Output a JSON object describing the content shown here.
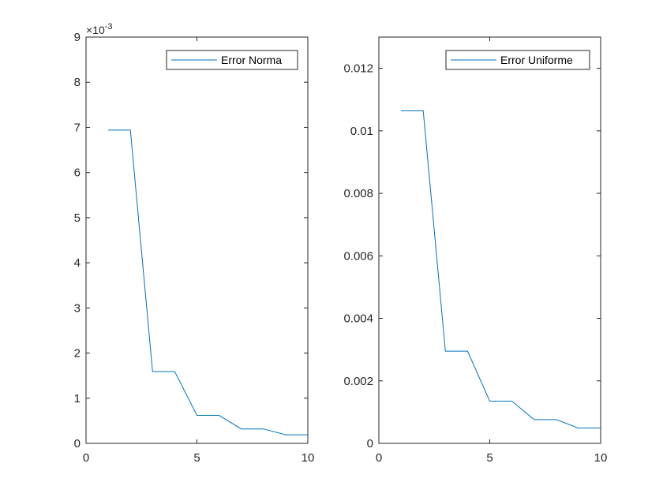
{
  "colors": {
    "series": "#0072bd",
    "axes": "#262626",
    "background": "#ffffff"
  },
  "chart_data": [
    {
      "type": "line",
      "x": [
        1,
        2,
        3,
        4,
        5,
        6,
        7,
        8,
        9,
        10
      ],
      "series": [
        {
          "name": "Error Norma",
          "values": [
            0.00694,
            0.00694,
            0.00159,
            0.00159,
            0.00062,
            0.00062,
            0.00032,
            0.00032,
            0.00019,
            0.00019
          ]
        }
      ],
      "xlim": [
        0,
        10
      ],
      "ylim": [
        0,
        0.009
      ],
      "xticks": [
        0,
        5,
        10
      ],
      "yticks": [
        0,
        1,
        2,
        3,
        4,
        5,
        6,
        7,
        8,
        9
      ],
      "ytick_scale": 0.001,
      "exponent_label": "×10",
      "exponent_power": "-3",
      "legend_position": "top-right",
      "grid": false
    },
    {
      "type": "line",
      "x": [
        1,
        2,
        3,
        4,
        5,
        6,
        7,
        8,
        9,
        10
      ],
      "series": [
        {
          "name": "Error Uniforme",
          "values": [
            0.01064,
            0.01064,
            0.00295,
            0.00295,
            0.00135,
            0.00135,
            0.00076,
            0.00076,
            0.00049,
            0.00049
          ]
        }
      ],
      "xlim": [
        0,
        10
      ],
      "ylim": [
        0,
        0.013
      ],
      "xticks": [
        0,
        5,
        10
      ],
      "yticks": [
        0,
        0.002,
        0.004,
        0.006,
        0.008,
        0.01,
        0.012
      ],
      "ytick_labels": [
        "0",
        "0.002",
        "0.004",
        "0.006",
        "0.008",
        "0.01",
        "0.012"
      ],
      "legend_position": "top-right",
      "grid": false
    }
  ]
}
